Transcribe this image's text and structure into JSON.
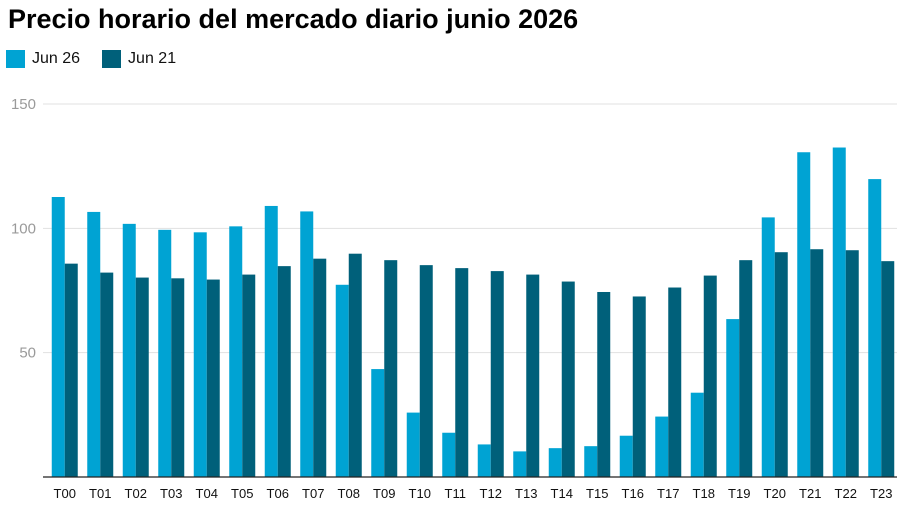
{
  "chart_data": {
    "type": "bar",
    "title": "Precio horario del mercado diario junio 2026",
    "xlabel": "",
    "ylabel": "",
    "categories": [
      "T00",
      "T01",
      "T02",
      "T03",
      "T04",
      "T05",
      "T06",
      "T07",
      "T08",
      "T09",
      "T10",
      "T11",
      "T12",
      "T13",
      "T14",
      "T15",
      "T16",
      "T17",
      "T18",
      "T19",
      "T20",
      "T21",
      "T22",
      "T23"
    ],
    "series": [
      {
        "name": "Jun 26",
        "color": "#00a3d3",
        "values": [
          112.6,
          106.6,
          101.8,
          99.4,
          98.4,
          100.8,
          109.0,
          106.8,
          77.3,
          43.4,
          25.9,
          17.8,
          13.1,
          10.3,
          11.6,
          12.4,
          16.6,
          24.3,
          33.9,
          63.5,
          104.4,
          130.6,
          132.5,
          119.8
        ]
      },
      {
        "name": "Jun 21",
        "color": "#00607a",
        "values": [
          85.8,
          82.2,
          80.2,
          79.9,
          79.4,
          81.4,
          84.8,
          87.8,
          89.8,
          87.2,
          85.2,
          84.0,
          82.8,
          81.4,
          78.6,
          74.4,
          72.6,
          76.2,
          81.0,
          87.2,
          90.4,
          91.6,
          91.2,
          86.8
        ]
      }
    ],
    "ylim": [
      0,
      150
    ],
    "yticks": [
      50,
      100,
      150
    ],
    "grid": true,
    "legend_position": "top-left"
  }
}
